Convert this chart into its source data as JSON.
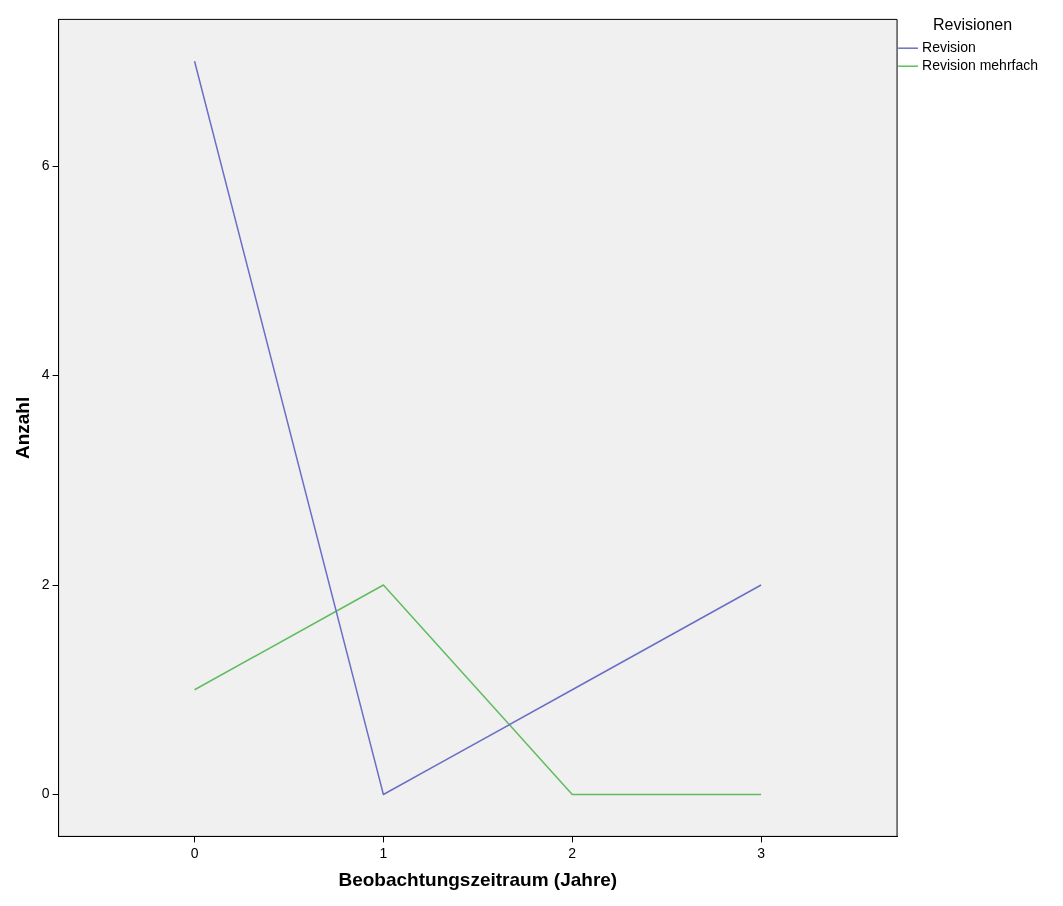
{
  "chart_data": {
    "type": "line",
    "xlabel": "Beobachtungszeitraum (Jahre)",
    "ylabel": "Anzahl",
    "legend_title": "Revisionen",
    "x": [
      0,
      1,
      2,
      3
    ],
    "series": [
      {
        "name": "Revision",
        "color": "#6b6fc4",
        "values": [
          7,
          0,
          1,
          2
        ]
      },
      {
        "name": "Revision mehrfach",
        "color": "#5fbd5f",
        "values": [
          1,
          2,
          0,
          0
        ]
      }
    ],
    "xlim": [
      -0.72,
      3.72
    ],
    "xticks": [
      0,
      1,
      2,
      3
    ],
    "ylim": [
      -0.4,
      7.4
    ],
    "yticks": [
      0,
      2,
      4,
      6
    ],
    "grid": false,
    "legend": "top right",
    "marker": "none",
    "line_style": "solid"
  }
}
